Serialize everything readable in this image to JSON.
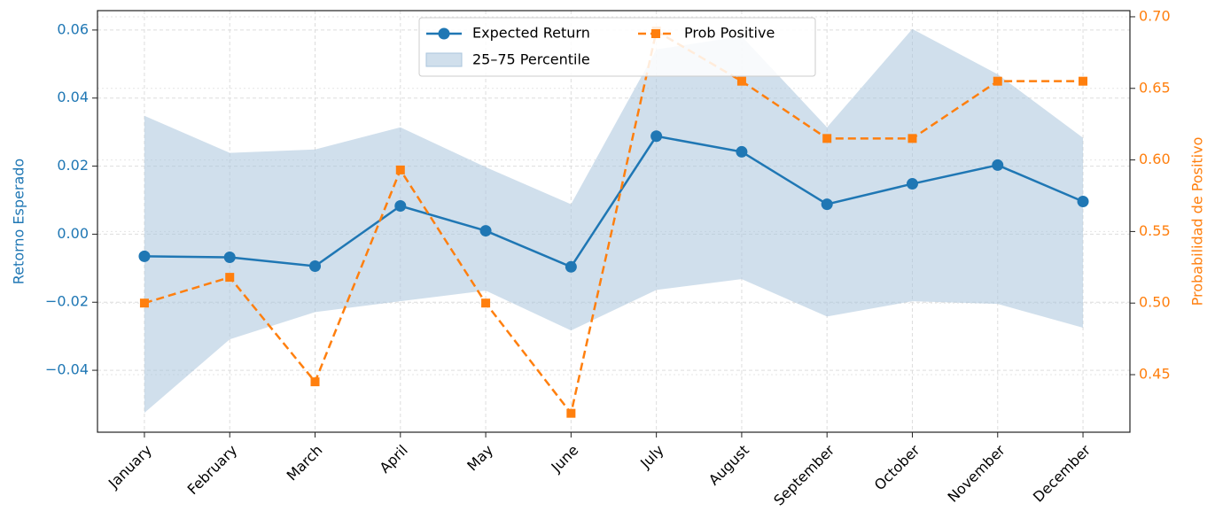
{
  "chart_data": {
    "type": "line",
    "categories": [
      "January",
      "February",
      "March",
      "April",
      "May",
      "June",
      "July",
      "August",
      "September",
      "October",
      "November",
      "December"
    ],
    "series": [
      {
        "name": "Expected Return",
        "color": "#1f77b4",
        "values": [
          -0.0065,
          -0.0068,
          -0.0094,
          0.0083,
          0.001,
          -0.0096,
          0.0288,
          0.0242,
          0.0088,
          0.0148,
          0.0203,
          0.0096
        ]
      },
      {
        "name": "Prob Positive",
        "color": "#ff7f0e",
        "axis": "y2",
        "values": [
          0.5,
          0.518,
          0.445,
          0.593,
          0.5,
          0.423,
          0.69,
          0.655,
          0.615,
          0.615,
          0.655,
          0.655
        ]
      }
    ],
    "band": {
      "name": "25–75 Percentile",
      "color": "#aac4dd",
      "upper": [
        0.0348,
        0.0239,
        0.0249,
        0.0314,
        0.0197,
        0.0088,
        0.0543,
        0.0582,
        0.0314,
        0.0603,
        0.047,
        0.0283
      ],
      "lower": [
        -0.0525,
        -0.0309,
        -0.0229,
        -0.0197,
        -0.0166,
        -0.0283,
        -0.0164,
        -0.0132,
        -0.0242,
        -0.0197,
        -0.0205,
        -0.0275
      ]
    },
    "ylabel": "Retorno Esperado",
    "y2label": "Probabilidad de Positivo",
    "ylim": [
      -0.0582,
      0.0657
    ],
    "yticks": [
      {
        "value": -0.04,
        "label": "−0.04"
      },
      {
        "value": -0.02,
        "label": "−0.02"
      },
      {
        "value": 0,
        "label": "0.00"
      },
      0.02,
      0.04,
      0.06
    ],
    "y2lim": [
      0.4098,
      0.7043
    ],
    "y2ticks": [
      0.45,
      {
        "value": 0.5,
        "label": "0.50"
      },
      0.55,
      {
        "value": 0.6,
        "label": "0.60"
      },
      0.65,
      {
        "value": 0.7,
        "label": "0.70"
      }
    ],
    "grid": true,
    "legend": "upper center"
  }
}
